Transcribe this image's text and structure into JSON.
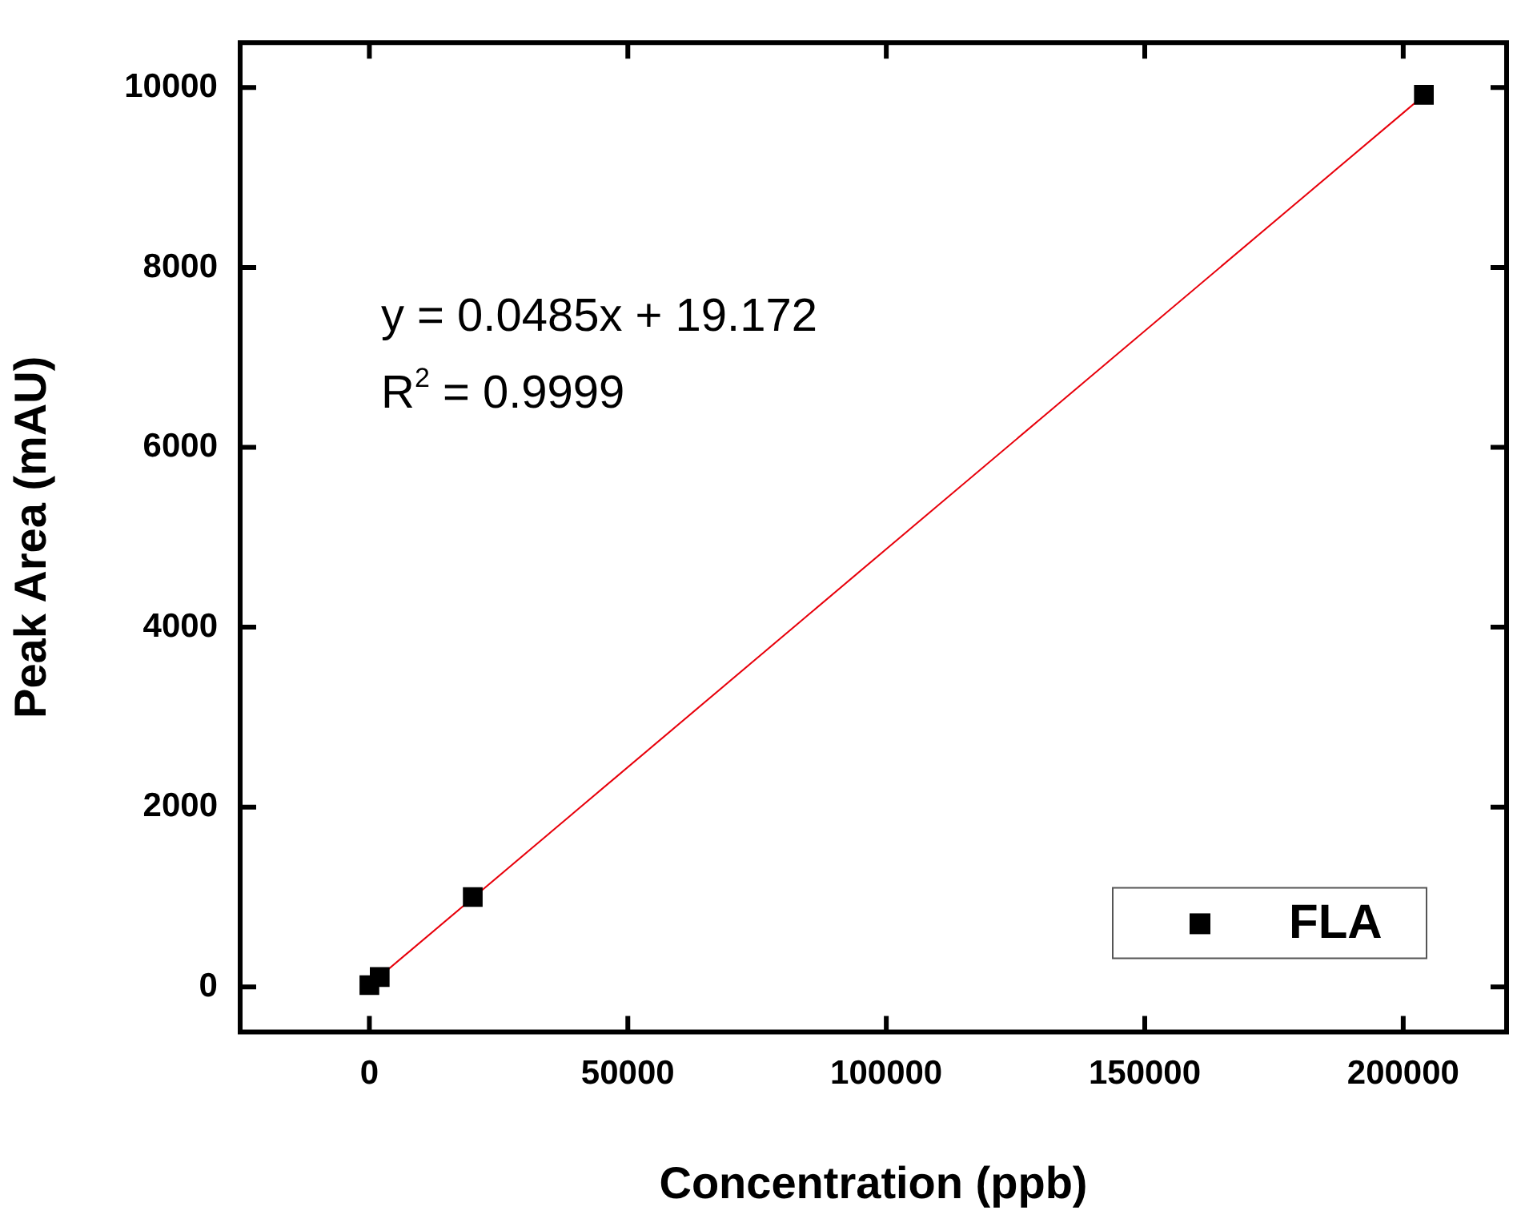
{
  "chart_data": {
    "type": "scatter",
    "xlabel": "Concentration (ppb)",
    "ylabel": "Peak Area (mAU)",
    "xlim": [
      -25000,
      220000
    ],
    "ylim": [
      -500,
      10500
    ],
    "xticks": [
      0,
      50000,
      100000,
      150000,
      200000
    ],
    "yticks": [
      0,
      2000,
      4000,
      6000,
      8000,
      10000
    ],
    "grid": false,
    "legend": "bottom right",
    "marker": "square",
    "series": [
      {
        "name": "FLA",
        "type": "scatter",
        "color": "#000000",
        "x": [
          0,
          2000,
          20000,
          204000
        ],
        "values": [
          20,
          110,
          1000,
          9920
        ]
      },
      {
        "type": "line",
        "color": "#e8000b",
        "x": [
          0,
          204000
        ],
        "values": [
          19,
          9913
        ],
        "marker": "none"
      }
    ],
    "annotations": [
      "y = 0.0485x + 19.172",
      "R$^{2}$ = 0.9999"
    ]
  }
}
